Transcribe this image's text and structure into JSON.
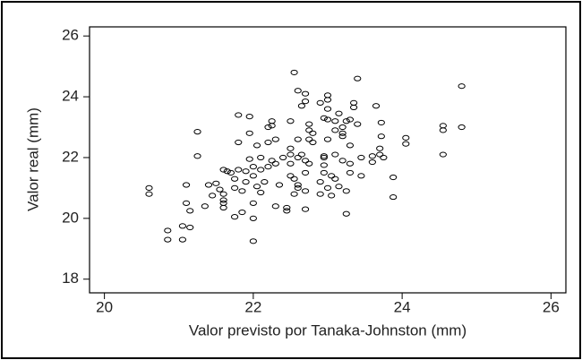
{
  "chart_data": {
    "type": "scatter",
    "xlabel": "Valor previsto por Tanaka-Johnston (mm)",
    "ylabel": "Valor real (mm)",
    "xlim": [
      19.8,
      26.2
    ],
    "ylim": [
      17.55,
      26.3
    ],
    "xticks": [
      20,
      22,
      24,
      26
    ],
    "yticks": [
      18,
      20,
      22,
      24,
      26
    ],
    "color": "#000000",
    "x": [
      20.6,
      20.6,
      20.85,
      20.85,
      21.05,
      21.05,
      21.1,
      21.1,
      21.15,
      21.15,
      21.25,
      21.25,
      21.35,
      21.4,
      21.45,
      21.5,
      21.55,
      21.6,
      21.6,
      21.6,
      21.6,
      21.6,
      21.65,
      21.7,
      21.75,
      21.75,
      21.75,
      21.8,
      21.8,
      21.8,
      21.85,
      21.85,
      21.9,
      21.9,
      21.95,
      21.95,
      21.95,
      22.0,
      22.0,
      22.0,
      22.0,
      22.0,
      22.05,
      22.05,
      22.1,
      22.1,
      22.1,
      22.15,
      22.2,
      22.2,
      22.2,
      22.25,
      22.25,
      22.25,
      22.3,
      22.3,
      22.3,
      22.35,
      22.4,
      22.45,
      22.45,
      22.5,
      22.5,
      22.5,
      22.5,
      22.5,
      22.55,
      22.55,
      22.6,
      22.6,
      22.6,
      22.6,
      22.55,
      22.6,
      22.65,
      22.65,
      22.7,
      22.7,
      22.7,
      22.7,
      22.7,
      22.7,
      22.75,
      22.75,
      22.75,
      22.75,
      22.8,
      22.8,
      22.9,
      22.9,
      22.9,
      22.95,
      22.95,
      22.95,
      22.95,
      22.95,
      23.0,
      23.0,
      23.0,
      23.0,
      23.0,
      23.0,
      23.05,
      23.05,
      23.1,
      23.1,
      23.1,
      23.1,
      23.15,
      23.15,
      23.2,
      23.2,
      23.2,
      23.2,
      23.25,
      23.25,
      23.25,
      23.3,
      23.3,
      23.3,
      23.3,
      23.35,
      23.35,
      23.4,
      23.4,
      23.45,
      23.45,
      23.6,
      23.6,
      23.65,
      23.7,
      23.7,
      23.72,
      23.72,
      23.75,
      23.88,
      23.88,
      24.05,
      24.05,
      24.55,
      24.55,
      24.55,
      24.8,
      24.8
    ],
    "values": [
      21.0,
      20.8,
      19.6,
      19.3,
      19.75,
      19.3,
      21.1,
      20.5,
      19.7,
      20.25,
      22.85,
      22.05,
      20.4,
      21.1,
      20.75,
      21.15,
      20.95,
      20.8,
      20.6,
      20.5,
      20.35,
      21.6,
      21.55,
      21.5,
      21.3,
      21.0,
      20.05,
      23.4,
      22.5,
      21.6,
      20.2,
      20.9,
      21.55,
      21.2,
      23.35,
      22.8,
      21.95,
      21.4,
      21.7,
      20.5,
      20.0,
      19.25,
      22.4,
      21.05,
      22.0,
      21.6,
      20.85,
      21.2,
      23.0,
      22.5,
      21.7,
      23.2,
      23.05,
      21.9,
      22.6,
      21.8,
      20.4,
      21.1,
      22.0,
      20.35,
      20.25,
      23.2,
      22.3,
      22.1,
      21.8,
      21.4,
      21.3,
      20.8,
      22.6,
      22.0,
      21.1,
      21.0,
      24.8,
      24.2,
      23.7,
      22.1,
      21.9,
      21.5,
      20.3,
      20.9,
      24.1,
      23.85,
      23.1,
      22.9,
      22.6,
      21.8,
      22.8,
      22.5,
      21.2,
      20.8,
      23.8,
      22.05,
      23.3,
      22.0,
      21.75,
      21.5,
      23.9,
      23.6,
      21.0,
      24.05,
      23.25,
      22.6,
      21.4,
      20.75,
      23.2,
      22.9,
      22.1,
      21.3,
      23.45,
      21.05,
      23.0,
      22.7,
      22.8,
      21.9,
      23.2,
      20.9,
      20.15,
      23.25,
      22.4,
      21.8,
      21.5,
      23.8,
      23.65,
      24.6,
      23.1,
      22.0,
      21.4,
      21.85,
      22.05,
      23.7,
      22.3,
      22.1,
      23.15,
      22.7,
      22.0,
      21.35,
      20.7,
      22.65,
      22.45,
      23.05,
      22.9,
      22.1,
      24.35,
      23.0
    ]
  }
}
